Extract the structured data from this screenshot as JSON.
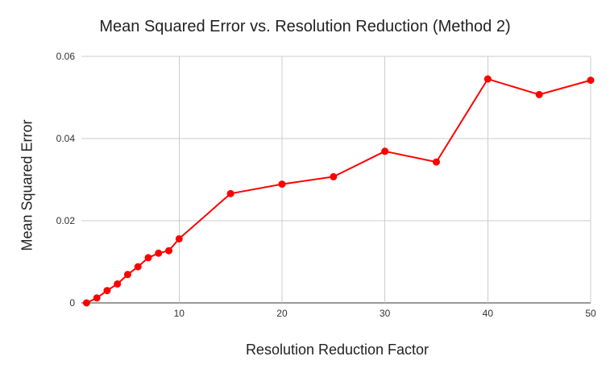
{
  "chart_data": {
    "type": "line",
    "title": "Mean Squared Error vs. Resolution Reduction (Method 2)",
    "xlabel": "Resolution Reduction Factor",
    "ylabel": "Mean Squared Error",
    "xlim": [
      0.5,
      50
    ],
    "ylim": [
      0,
      0.06
    ],
    "x_ticks": [
      10,
      20,
      30,
      40,
      50
    ],
    "y_ticks": [
      0,
      0.02,
      0.04,
      0.06
    ],
    "x_tick_labels": [
      "10",
      "20",
      "30",
      "40",
      "50"
    ],
    "y_tick_labels": [
      "0",
      "0.02",
      "0.04",
      "0.06"
    ],
    "grid": true,
    "series": [
      {
        "color": "#ff0000",
        "x": [
          1,
          2,
          3,
          4,
          5,
          6,
          7,
          8,
          9,
          10,
          15,
          20,
          25,
          30,
          35,
          40,
          45,
          50
        ],
        "y": [
          0.0,
          0.0012,
          0.003,
          0.0046,
          0.0069,
          0.0088,
          0.011,
          0.0121,
          0.0127,
          0.0156,
          0.0266,
          0.0289,
          0.0307,
          0.0369,
          0.0343,
          0.0545,
          0.0507,
          0.0542
        ]
      }
    ]
  }
}
